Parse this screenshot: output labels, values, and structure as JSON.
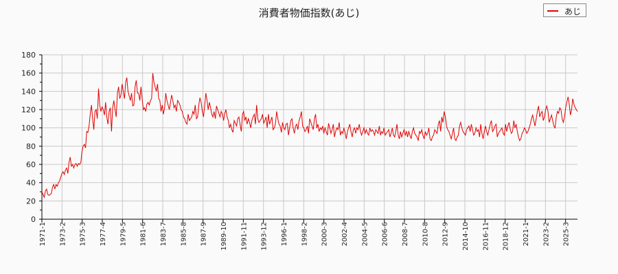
{
  "title": "消費者物価指数(あじ)",
  "legend": {
    "label": "あじ",
    "color": "#e00000"
  },
  "chart_data": {
    "type": "line",
    "title": "消費者物価指数(あじ)",
    "xlabel": "",
    "ylabel": "",
    "ylim": [
      0,
      180
    ],
    "yticks": [
      0,
      20,
      40,
      60,
      80,
      100,
      120,
      140,
      160,
      180
    ],
    "grid": true,
    "legend_position": "top-right",
    "x_tick_labels": [
      "1971-1",
      "1973-2",
      "1975-3",
      "1977-4",
      "1979-5",
      "1981-6",
      "1983-7",
      "1985-8",
      "1987-9",
      "1989-10",
      "1991-11",
      "1993-12",
      "1996-1",
      "1998-2",
      "2000-3",
      "2002-4",
      "2004-5",
      "2006-6",
      "2008-7",
      "2010-8",
      "2012-9",
      "2014-10",
      "2016-11",
      "2018-12",
      "2021-1",
      "2023-2",
      "2025-3"
    ],
    "series": [
      {
        "name": "あじ",
        "color": "#e00000",
        "x_start": "1971-1",
        "step_months": 2,
        "values": [
          30,
          27,
          24,
          31,
          33,
          27,
          26,
          27,
          28,
          35,
          38,
          33,
          38,
          36,
          40,
          42,
          46,
          50,
          52,
          49,
          54,
          56,
          50,
          62,
          68,
          58,
          60,
          56,
          60,
          61,
          58,
          61,
          60,
          62,
          74,
          80,
          82,
          78,
          96,
          95,
          102,
          115,
          125,
          110,
          98,
          118,
          120,
          110,
          143,
          125,
          118,
          123,
          120,
          114,
          128,
          112,
          104,
          118,
          122,
          96,
          122,
          130,
          120,
          112,
          138,
          145,
          132,
          136,
          148,
          140,
          132,
          150,
          155,
          140,
          135,
          130,
          138,
          124,
          125,
          145,
          152,
          138,
          138,
          130,
          145,
          132,
          120,
          122,
          118,
          126,
          128,
          125,
          130,
          132,
          160,
          150,
          145,
          140,
          148,
          132,
          130,
          118,
          125,
          115,
          122,
          138,
          130,
          125,
          120,
          128,
          136,
          130,
          122,
          125,
          118,
          130,
          128,
          125,
          120,
          118,
          112,
          110,
          106,
          104,
          115,
          108,
          110,
          112,
          118,
          115,
          125,
          110,
          112,
          125,
          133,
          128,
          118,
          112,
          125,
          138,
          130,
          120,
          128,
          122,
          115,
          112,
          118,
          110,
          124,
          120,
          116,
          112,
          118,
          115,
          108,
          116,
          120,
          112,
          108,
          100,
          104,
          98,
          95,
          108,
          105,
          102,
          110,
          112,
          104,
          96,
          115,
          118,
          108,
          112,
          104,
          110,
          106,
          100,
          108,
          112,
          115,
          104,
          125,
          110,
          106,
          108,
          110,
          115,
          105,
          108,
          112,
          100,
          115,
          104,
          108,
          112,
          98,
          100,
          105,
          118,
          110,
          104,
          102,
          95,
          106,
          100,
          98,
          104,
          105,
          92,
          100,
          108,
          110,
          100,
          94,
          102,
          104,
          98,
          108,
          112,
          118,
          102,
          100,
          96,
          98,
          102,
          94,
          110,
          106,
          102,
          98,
          110,
          115,
          100,
          104,
          96,
          100,
          98,
          102,
          94,
          100,
          96,
          92,
          105,
          100,
          94,
          98,
          104,
          90,
          96,
          100,
          98,
          106,
          92,
          96,
          94,
          100,
          95,
          88,
          96,
          100,
          104,
          96,
          90,
          98,
          100,
          94,
          100,
          98,
          104,
          96,
          92,
          96,
          100,
          94,
          98,
          94,
          92,
          100,
          96,
          98,
          96,
          92,
          98,
          96,
          94,
          102,
          92,
          96,
          94,
          100,
          92,
          94,
          96,
          98,
          90,
          94,
          100,
          92,
          90,
          96,
          104,
          92,
          88,
          96,
          90,
          94,
          98,
          92,
          96,
          90,
          96,
          92,
          88,
          96,
          100,
          94,
          92,
          90,
          86,
          96,
          94,
          98,
          92,
          88,
          96,
          92,
          94,
          100,
          88,
          86,
          90,
          92,
          98,
          96,
          94,
          104,
          108,
          96,
          112,
          106,
          118,
          112,
          102,
          98,
          96,
          92,
          88,
          94,
          100,
          88,
          86,
          90,
          92,
          102,
          106,
          100,
          96,
          94,
          92,
          98,
          100,
          102,
          96,
          104,
          98,
          92,
          94,
          100,
          96,
          98,
          90,
          104,
          94,
          88,
          96,
          102,
          96,
          92,
          98,
          104,
          108,
          96,
          98,
          102,
          104,
          90,
          94,
          96,
          98,
          100,
          94,
          92,
          104,
          96,
          102,
          106,
          98,
          94,
          96,
          108,
          100,
          104,
          96,
          90,
          86,
          88,
          94,
          96,
          100,
          98,
          94,
          96,
          100,
          104,
          110,
          114,
          108,
          102,
          110,
          118,
          124,
          112,
          116,
          118,
          108,
          112,
          120,
          124,
          118,
          106,
          110,
          114,
          108,
          102,
          100,
          112,
          118,
          116,
          122,
          120,
          110,
          106,
          112,
          122,
          128,
          134,
          126,
          114,
          120,
          132,
          126,
          122,
          120,
          118
        ]
      }
    ]
  }
}
